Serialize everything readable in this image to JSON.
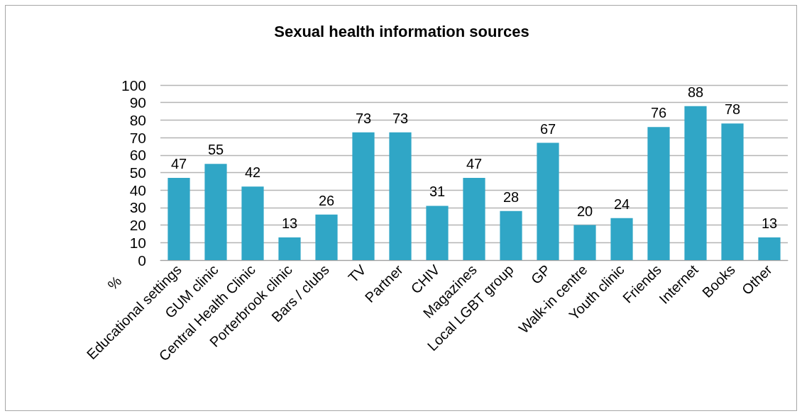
{
  "chart_data": {
    "type": "bar",
    "title": "Sexual health information sources",
    "ylabel": "%",
    "categories": [
      "Educational settings",
      "GUM clinic",
      "Central Health Clinic",
      "Porterbrook clinic",
      "Bars / clubs",
      "TV",
      "Partner",
      "CHIV",
      "Magazines",
      "Local LGBT group",
      "GP",
      "Walk-in centre",
      "Youth clinic",
      "Friends",
      "Internet",
      "Books",
      "Other"
    ],
    "values": [
      47,
      55,
      42,
      13,
      26,
      73,
      73,
      31,
      47,
      28,
      67,
      20,
      24,
      76,
      88,
      78,
      13
    ],
    "color": "#30a6c6",
    "ylim": [
      0,
      100
    ],
    "yticks": [
      0,
      10,
      20,
      30,
      40,
      50,
      60,
      70,
      80,
      90,
      100
    ],
    "grid": "y",
    "data_labels": true
  }
}
